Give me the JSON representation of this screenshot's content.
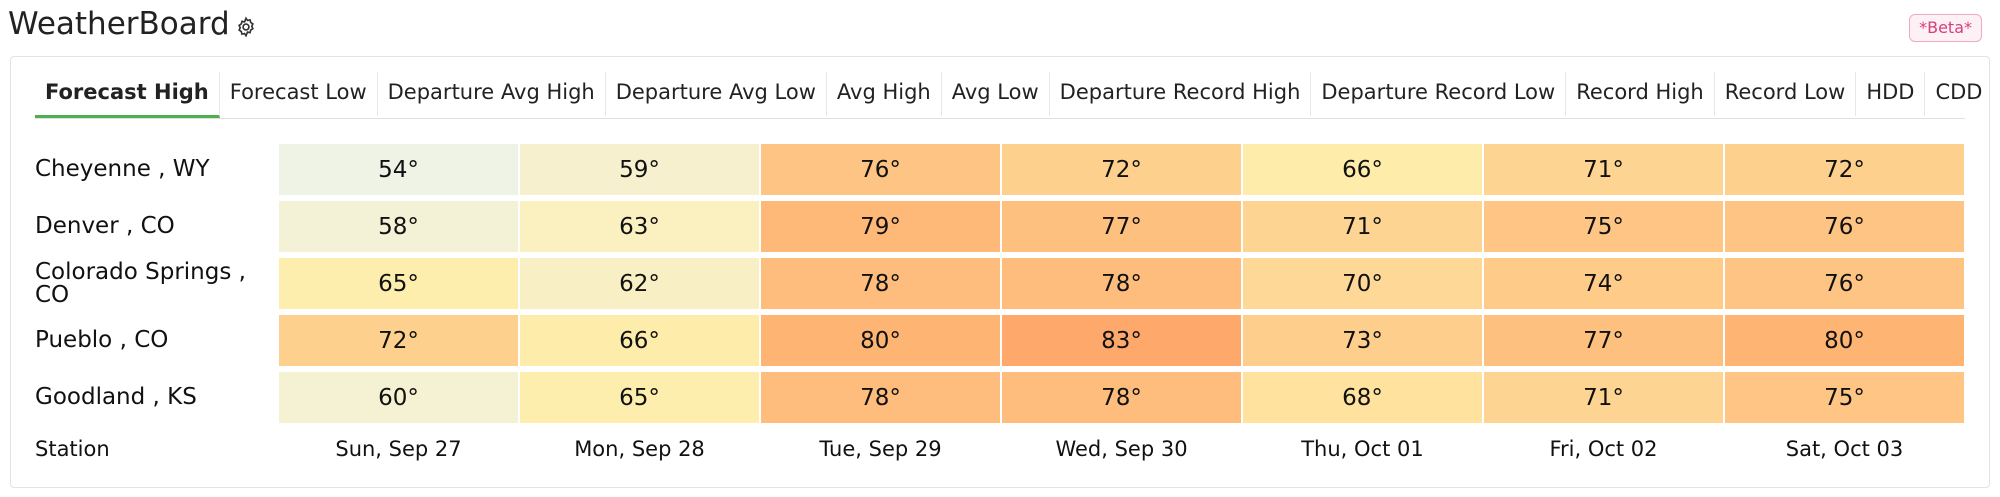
{
  "header": {
    "app_title": "WeatherBoard",
    "beta_label": "*Beta*"
  },
  "tabs": [
    "Forecast High",
    "Forecast Low",
    "Departure Avg High",
    "Departure Avg Low",
    "Avg High",
    "Avg Low",
    "Departure Record High",
    "Departure Record Low",
    "Record High",
    "Record Low",
    "HDD",
    "CDD"
  ],
  "active_tab": "Forecast High",
  "table": {
    "station_header": "Station",
    "dates": [
      "Sun, Sep 27",
      "Mon, Sep 28",
      "Tue, Sep 29",
      "Wed, Sep 30",
      "Thu, Oct 01",
      "Fri, Oct 02",
      "Sat, Oct 03"
    ],
    "rows": [
      {
        "station": "Cheyenne , WY",
        "temps": [
          "54°",
          "59°",
          "76°",
          "72°",
          "66°",
          "71°",
          "72°"
        ],
        "colors": [
          "#eef3e5",
          "#f6f0cf",
          "#fec483",
          "#fed08d",
          "#feecaa",
          "#fed492",
          "#fed08d"
        ]
      },
      {
        "station": "Denver , CO",
        "temps": [
          "58°",
          "63°",
          "79°",
          "77°",
          "71°",
          "75°",
          "76°"
        ],
        "colors": [
          "#f4f2d6",
          "#faf0c0",
          "#feb978",
          "#fec07f",
          "#fed492",
          "#fec585",
          "#fec483"
        ]
      },
      {
        "station": "Colorado Springs , CO",
        "temps": [
          "65°",
          "62°",
          "78°",
          "78°",
          "70°",
          "74°",
          "76°"
        ],
        "colors": [
          "#feeeae",
          "#f9efc5",
          "#febd7c",
          "#febd7c",
          "#fed896",
          "#fecb89",
          "#fec483"
        ]
      },
      {
        "station": "Pueblo , CO",
        "temps": [
          "72°",
          "66°",
          "80°",
          "83°",
          "73°",
          "77°",
          "80°"
        ],
        "colors": [
          "#fed08d",
          "#feecaa",
          "#feb573",
          "#fea96b",
          "#fecf8c",
          "#fec07f",
          "#feb573"
        ]
      },
      {
        "station": "Goodland , KS",
        "temps": [
          "60°",
          "65°",
          "78°",
          "78°",
          "68°",
          "71°",
          "75°"
        ],
        "colors": [
          "#f4f2d3",
          "#feeeae",
          "#febd7c",
          "#febd7c",
          "#fee29e",
          "#fed492",
          "#fec585"
        ]
      }
    ]
  },
  "colors": {
    "active_tab_underline": "#4caf50",
    "beta_text": "#d6407a"
  },
  "icons": {
    "settings": "gear-icon"
  }
}
